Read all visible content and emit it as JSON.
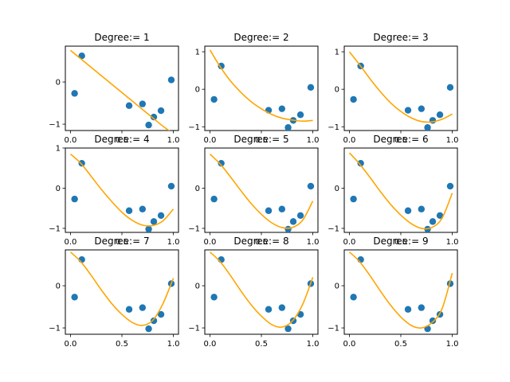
{
  "colors": {
    "points": "#1f77b4",
    "fit_line": "#ffa500",
    "axes": "#000000",
    "background": "#ffffff"
  },
  "chart_data": [
    {
      "type": "scatter",
      "title": "Degree:= 1",
      "xlim": [
        -0.05,
        1.05
      ],
      "ylim": [
        -1.15,
        0.85
      ],
      "xticks": [
        0.0,
        0.5,
        1.0
      ],
      "xtick_labels": [
        "0.0",
        "0.5",
        "1.0"
      ],
      "yticks": [
        -1,
        0
      ],
      "ytick_labels": [
        "−1",
        "0"
      ],
      "points": {
        "x": [
          0.04,
          0.11,
          0.57,
          0.7,
          0.76,
          0.81,
          0.88,
          0.98
        ],
        "y": [
          -0.27,
          0.62,
          -0.56,
          -0.52,
          -1.02,
          -0.83,
          -0.68,
          0.05
        ]
      },
      "fit": {
        "degree": 1,
        "x": [
          0.0,
          0.1,
          0.2,
          0.3,
          0.4,
          0.5,
          0.6,
          0.7,
          0.8,
          0.9,
          1.0
        ],
        "y": [
          0.75,
          0.55,
          0.35,
          0.15,
          -0.05,
          -0.25,
          -0.45,
          -0.65,
          -0.85,
          -1.05,
          -1.22
        ]
      }
    },
    {
      "type": "scatter",
      "title": "Degree:= 2",
      "xlim": [
        -0.05,
        1.05
      ],
      "ylim": [
        -1.1,
        1.15
      ],
      "xticks": [
        0.0,
        0.5,
        1.0
      ],
      "xtick_labels": [
        "0.0",
        "0.5",
        "1.0"
      ],
      "yticks": [
        -1,
        0,
        1
      ],
      "ytick_labels": [
        "−1",
        "0",
        "1"
      ],
      "points": {
        "x": [
          0.04,
          0.11,
          0.57,
          0.7,
          0.76,
          0.81,
          0.88,
          0.98
        ],
        "y": [
          -0.27,
          0.62,
          -0.56,
          -0.52,
          -1.02,
          -0.83,
          -0.68,
          0.05
        ]
      },
      "fit": {
        "degree": 2,
        "x": [
          0.0,
          0.1,
          0.2,
          0.3,
          0.4,
          0.5,
          0.6,
          0.7,
          0.8,
          0.9,
          1.0
        ],
        "y": [
          1.05,
          0.6,
          0.22,
          -0.08,
          -0.33,
          -0.52,
          -0.67,
          -0.77,
          -0.82,
          -0.85,
          -0.83
        ]
      }
    },
    {
      "type": "scatter",
      "title": "Degree:= 3",
      "xlim": [
        -0.05,
        1.05
      ],
      "ylim": [
        -1.1,
        1.15
      ],
      "xticks": [
        0.0,
        0.5,
        1.0
      ],
      "xtick_labels": [
        "0.0",
        "0.5",
        "1.0"
      ],
      "yticks": [
        -1,
        0,
        1
      ],
      "ytick_labels": [
        "−1",
        "0",
        "1"
      ],
      "points": {
        "x": [
          0.04,
          0.11,
          0.57,
          0.7,
          0.76,
          0.81,
          0.88,
          0.98
        ],
        "y": [
          -0.27,
          0.62,
          -0.56,
          -0.52,
          -1.02,
          -0.83,
          -0.68,
          0.05
        ]
      },
      "fit": {
        "degree": 3,
        "x": [
          0.0,
          0.1,
          0.2,
          0.3,
          0.4,
          0.5,
          0.6,
          0.7,
          0.8,
          0.9,
          1.0
        ],
        "y": [
          1.0,
          0.65,
          0.28,
          -0.06,
          -0.36,
          -0.59,
          -0.76,
          -0.86,
          -0.87,
          -0.8,
          -0.66
        ]
      }
    },
    {
      "type": "scatter",
      "title": "Degree:= 4",
      "xlim": [
        -0.05,
        1.05
      ],
      "ylim": [
        -1.1,
        1.0
      ],
      "xticks": [
        0.0,
        0.5,
        1.0
      ],
      "xtick_labels": [
        "0.0",
        "0.5",
        "1.0"
      ],
      "yticks": [
        -1,
        0,
        1
      ],
      "ytick_labels": [
        "−1",
        "0",
        "1"
      ],
      "points": {
        "x": [
          0.04,
          0.11,
          0.57,
          0.7,
          0.76,
          0.81,
          0.88,
          0.98
        ],
        "y": [
          -0.27,
          0.62,
          -0.56,
          -0.52,
          -1.02,
          -0.83,
          -0.68,
          0.05
        ]
      },
      "fit": {
        "degree": 4,
        "x": [
          0.0,
          0.1,
          0.2,
          0.3,
          0.4,
          0.5,
          0.6,
          0.7,
          0.8,
          0.9,
          1.0
        ],
        "y": [
          0.85,
          0.62,
          0.3,
          -0.03,
          -0.33,
          -0.6,
          -0.8,
          -0.92,
          -0.93,
          -0.81,
          -0.52
        ]
      }
    },
    {
      "type": "scatter",
      "title": "Degree:= 5",
      "xlim": [
        -0.05,
        1.05
      ],
      "ylim": [
        -1.1,
        1.0
      ],
      "xticks": [
        0.0,
        0.5,
        1.0
      ],
      "xtick_labels": [
        "0.0",
        "0.5",
        "1.0"
      ],
      "yticks": [
        -1,
        0
      ],
      "ytick_labels": [
        "−1",
        "0"
      ],
      "points": {
        "x": [
          0.04,
          0.11,
          0.57,
          0.7,
          0.76,
          0.81,
          0.88,
          0.98
        ],
        "y": [
          -0.27,
          0.62,
          -0.56,
          -0.52,
          -1.02,
          -0.83,
          -0.68,
          0.05
        ]
      },
      "fit": {
        "degree": 5,
        "x": [
          0.0,
          0.1,
          0.2,
          0.3,
          0.4,
          0.5,
          0.6,
          0.7,
          0.8,
          0.9,
          1.0
        ],
        "y": [
          0.85,
          0.6,
          0.28,
          -0.06,
          -0.38,
          -0.65,
          -0.86,
          -0.98,
          -0.98,
          -0.8,
          -0.32
        ]
      }
    },
    {
      "type": "scatter",
      "title": "Degree:= 6",
      "xlim": [
        -0.05,
        1.05
      ],
      "ylim": [
        -1.1,
        1.0
      ],
      "xticks": [
        0.0,
        0.5,
        1.0
      ],
      "xtick_labels": [
        "0.0",
        "0.5",
        "1.0"
      ],
      "yticks": [
        -1,
        0
      ],
      "ytick_labels": [
        "−1",
        "0"
      ],
      "points": {
        "x": [
          0.04,
          0.11,
          0.57,
          0.7,
          0.76,
          0.81,
          0.88,
          0.98
        ],
        "y": [
          -0.27,
          0.62,
          -0.56,
          -0.52,
          -1.02,
          -0.83,
          -0.68,
          0.05
        ]
      },
      "fit": {
        "degree": 6,
        "x": [
          0.0,
          0.1,
          0.2,
          0.3,
          0.4,
          0.5,
          0.6,
          0.7,
          0.8,
          0.9,
          1.0
        ],
        "y": [
          0.88,
          0.6,
          0.27,
          -0.08,
          -0.4,
          -0.67,
          -0.88,
          -1.0,
          -0.98,
          -0.75,
          -0.12
        ]
      }
    },
    {
      "type": "scatter",
      "title": "Degree:= 7",
      "xlim": [
        -0.05,
        1.05
      ],
      "ylim": [
        -1.15,
        0.85
      ],
      "xticks": [
        0.0,
        0.5,
        1.0
      ],
      "xtick_labels": [
        "0.0",
        "0.5",
        "1.0"
      ],
      "yticks": [
        -1,
        0
      ],
      "ytick_labels": [
        "−1",
        "0"
      ],
      "points": {
        "x": [
          0.04,
          0.11,
          0.57,
          0.7,
          0.76,
          0.81,
          0.88,
          0.98
        ],
        "y": [
          -0.27,
          0.62,
          -0.56,
          -0.52,
          -1.02,
          -0.83,
          -0.68,
          0.05
        ]
      },
      "fit": {
        "degree": 7,
        "x": [
          0.0,
          0.1,
          0.2,
          0.3,
          0.4,
          0.5,
          0.6,
          0.7,
          0.8,
          0.9,
          1.0
        ],
        "y": [
          0.8,
          0.57,
          0.25,
          -0.1,
          -0.42,
          -0.68,
          -0.87,
          -0.94,
          -0.82,
          -0.42,
          0.18
        ]
      }
    },
    {
      "type": "scatter",
      "title": "Degree:= 8",
      "xlim": [
        -0.05,
        1.05
      ],
      "ylim": [
        -1.15,
        0.85
      ],
      "xticks": [
        0.0,
        0.5,
        1.0
      ],
      "xtick_labels": [
        "0.0",
        "0.5",
        "1.0"
      ],
      "yticks": [
        -1,
        0
      ],
      "ytick_labels": [
        "−1",
        "0"
      ],
      "points": {
        "x": [
          0.04,
          0.11,
          0.57,
          0.7,
          0.76,
          0.81,
          0.88,
          0.98
        ],
        "y": [
          -0.27,
          0.62,
          -0.56,
          -0.52,
          -1.02,
          -0.83,
          -0.68,
          0.05
        ]
      },
      "fit": {
        "degree": 8,
        "x": [
          0.0,
          0.1,
          0.2,
          0.3,
          0.4,
          0.5,
          0.6,
          0.7,
          0.8,
          0.9,
          1.0
        ],
        "y": [
          0.8,
          0.57,
          0.24,
          -0.12,
          -0.45,
          -0.72,
          -0.92,
          -0.98,
          -0.84,
          -0.45,
          0.2
        ]
      }
    },
    {
      "type": "scatter",
      "title": "Degree:= 9",
      "xlim": [
        -0.05,
        1.05
      ],
      "ylim": [
        -1.15,
        0.85
      ],
      "xticks": [
        0.0,
        0.5,
        1.0
      ],
      "xtick_labels": [
        "0.0",
        "0.5",
        "1.0"
      ],
      "yticks": [
        -1,
        0
      ],
      "ytick_labels": [
        "−1",
        "0"
      ],
      "points": {
        "x": [
          0.04,
          0.11,
          0.57,
          0.7,
          0.76,
          0.81,
          0.88,
          0.98
        ],
        "y": [
          -0.27,
          0.62,
          -0.56,
          -0.52,
          -1.02,
          -0.83,
          -0.68,
          0.05
        ]
      },
      "fit": {
        "degree": 9,
        "x": [
          0.0,
          0.1,
          0.2,
          0.3,
          0.4,
          0.5,
          0.6,
          0.7,
          0.8,
          0.9,
          1.0
        ],
        "y": [
          0.8,
          0.57,
          0.24,
          -0.12,
          -0.46,
          -0.74,
          -0.94,
          -1.0,
          -0.88,
          -0.55,
          0.3
        ]
      }
    }
  ]
}
